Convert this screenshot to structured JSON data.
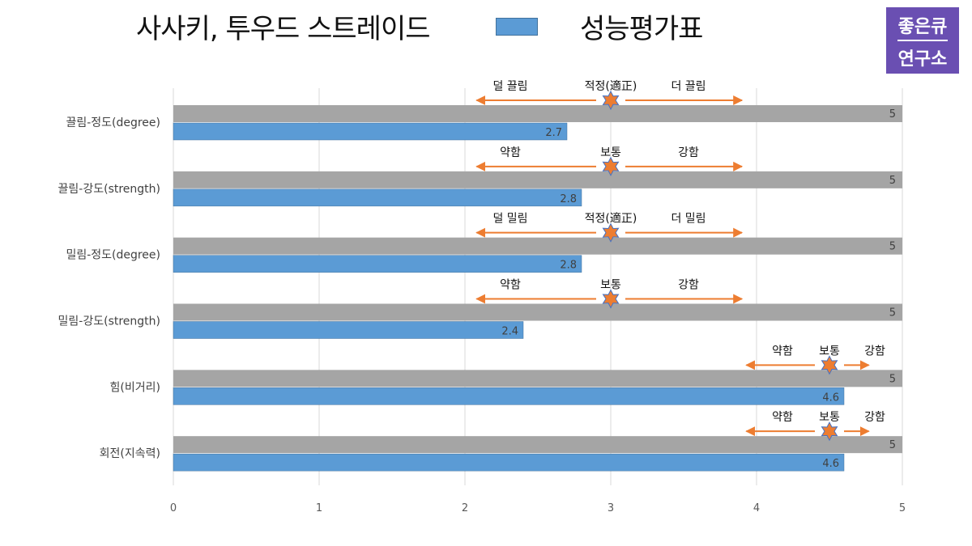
{
  "title": "사사키, 투우드 스트레이드",
  "legend_label": "성능평가표",
  "colors": {
    "max_bar": "#a5a5a5",
    "value_bar": "#5b9bd5",
    "arrow": "#ed7d31",
    "star": "#ed7d31",
    "star_stroke": "#4472c4",
    "grid": "#d9d9d9"
  },
  "logo": {
    "line1": "좋은큐",
    "line2": "연구소"
  },
  "chart_data": {
    "type": "bar",
    "orientation": "horizontal",
    "xlim": [
      0,
      5
    ],
    "x_ticks": [
      "0",
      "1",
      "2",
      "3",
      "4",
      "5"
    ],
    "categories": [
      "끌림-정도(degree)",
      "끌림-강도(strength)",
      "밀림-정도(degree)",
      "밀림-강도(strength)",
      "힘(비거리)",
      "회전(지속력)"
    ],
    "series": [
      {
        "values": [
          5,
          5,
          5,
          5,
          5,
          5
        ],
        "labels": [
          "5",
          "5",
          "5",
          "5",
          "5",
          "5"
        ]
      },
      {
        "name": "성능평가표",
        "values": [
          2.7,
          2.8,
          2.8,
          2.4,
          4.6,
          4.6
        ],
        "labels": [
          "2.7",
          "2.8",
          "2.8",
          "2.4",
          "4.6",
          "4.6"
        ]
      }
    ],
    "annotations": [
      {
        "left": "덜 끌림",
        "mid": "적정(適正)",
        "right": "더 끌림",
        "center": 3,
        "from": 2.08,
        "to": 3.9
      },
      {
        "left": "약함",
        "mid": "보통",
        "right": "강함",
        "center": 3,
        "from": 2.08,
        "to": 3.9
      },
      {
        "left": "덜 밀림",
        "mid": "적정(適正)",
        "right": "더 밀림",
        "center": 3,
        "from": 2.08,
        "to": 3.9
      },
      {
        "left": "약함",
        "mid": "보통",
        "right": "강함",
        "center": 3,
        "from": 2.08,
        "to": 3.9
      },
      {
        "left": "약함",
        "mid": "보통",
        "right": "강함",
        "center": 4.5,
        "from": 3.93,
        "to": 4.77
      },
      {
        "left": "약함",
        "mid": "보통",
        "right": "강함",
        "center": 4.5,
        "from": 3.93,
        "to": 4.77
      }
    ]
  }
}
